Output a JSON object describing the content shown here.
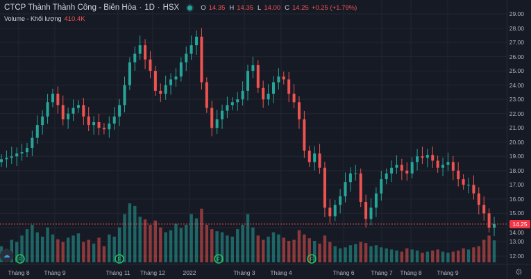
{
  "header": {
    "title": "CTCP Thành Thành Công - Biên Hòa",
    "interval": "1D",
    "exchange": "HSX",
    "ohlc": {
      "o_label": "O",
      "o": "14.35",
      "h_label": "H",
      "h": "14.35",
      "l_label": "L",
      "l": "14.00",
      "c_label": "C",
      "c": "14.25",
      "change": "+0.25 (+1.79%)"
    },
    "volume_label": "Volume - Khối lượng",
    "volume_value": "410.4K"
  },
  "price_axis": [
    "29.00",
    "28.00",
    "27.00",
    "26.00",
    "25.00",
    "24.00",
    "23.00",
    "22.00",
    "21.00",
    "20.00",
    "19.00",
    "18.00",
    "17.00",
    "16.00",
    "15.00",
    "14.00",
    "13.00",
    "12.00"
  ],
  "last_price": "14.25",
  "time_axis": [
    "Tháng 8",
    "Tháng 9",
    "Tháng 11",
    "Tháng 12",
    "2022",
    "Tháng 3",
    "Tháng 4",
    "Tháng 6",
    "Tháng 7",
    "Tháng 8",
    "Tháng 9"
  ],
  "event_marker": "F",
  "colors": {
    "up": "#26a69a",
    "down": "#ef5350",
    "background": "#161a25",
    "grid": "#232632"
  },
  "chart_data": {
    "type": "candlestick",
    "ylim": [
      11.5,
      29.5
    ],
    "closes": [
      18.8,
      18.9,
      19.0,
      19.2,
      19.3,
      19.6,
      20.3,
      21.2,
      21.8,
      22.8,
      23.4,
      22.6,
      21.6,
      22.0,
      22.4,
      22.6,
      21.8,
      21.2,
      21.4,
      21.0,
      20.9,
      21.3,
      21.8,
      22.6,
      24.0,
      25.6,
      26.2,
      26.8,
      25.8,
      25.0,
      23.6,
      23.4,
      24.0,
      24.4,
      24.6,
      25.6,
      26.2,
      26.8,
      27.4,
      24.2,
      22.4,
      21.0,
      21.6,
      22.2,
      22.6,
      22.8,
      23.0,
      23.6,
      25.0,
      25.4,
      23.8,
      23.0,
      23.4,
      24.2,
      24.6,
      24.4,
      23.4,
      22.8,
      21.6,
      19.4,
      18.6,
      19.2,
      18.2,
      15.4,
      14.8,
      15.6,
      16.2,
      17.2,
      17.8,
      17.8,
      15.8,
      14.6,
      15.4,
      16.4,
      17.4,
      17.8,
      18.2,
      18.4,
      18.0,
      17.8,
      18.6,
      19.0,
      18.9,
      19.1,
      18.7,
      18.2,
      18.4,
      18.6,
      18.0,
      17.4,
      17.0,
      17.0,
      16.4,
      15.6,
      15.0,
      14.0,
      14.25
    ],
    "volumes_k": [
      300,
      250,
      420,
      380,
      500,
      620,
      700,
      560,
      480,
      650,
      520,
      430,
      380,
      460,
      500,
      540,
      380,
      420,
      350,
      460,
      300,
      520,
      480,
      650,
      900,
      1100,
      1050,
      850,
      800,
      700,
      780,
      650,
      560,
      600,
      720,
      640,
      700,
      900,
      820,
      1000,
      700,
      620,
      580,
      560,
      500,
      480,
      620,
      700,
      900,
      650,
      500,
      420,
      480,
      560,
      520,
      460,
      400,
      420,
      600,
      520,
      450,
      400,
      350,
      500,
      380,
      300,
      260,
      280,
      320,
      340,
      380,
      360,
      300,
      320,
      280,
      260,
      240,
      220,
      200,
      260,
      240,
      220,
      180,
      200,
      220,
      240,
      200,
      180,
      200,
      220,
      260,
      240,
      280,
      300,
      420,
      500,
      410
    ]
  }
}
